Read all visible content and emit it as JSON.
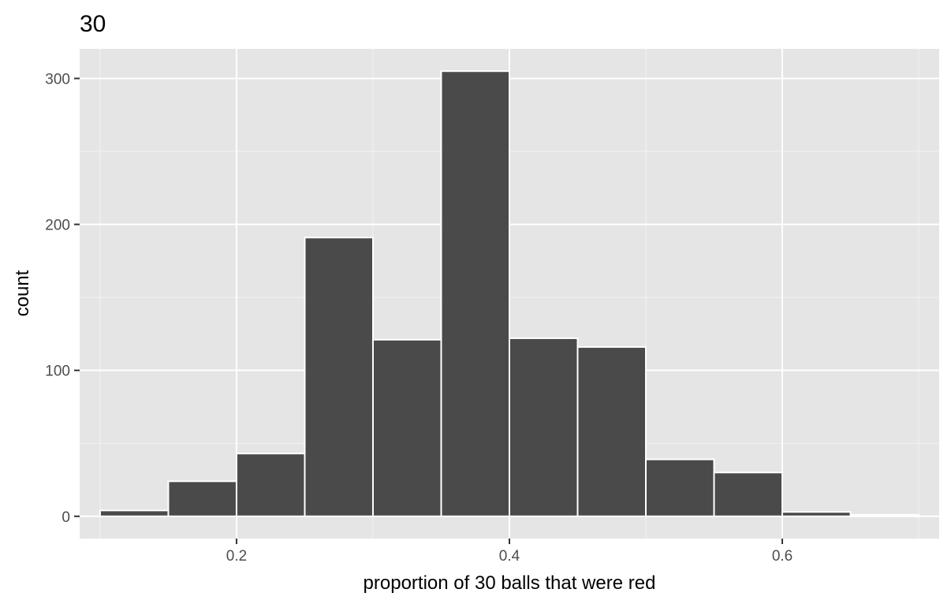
{
  "chart_data": {
    "type": "bar",
    "title": "30",
    "xlabel": "proportion of 30 balls that were red",
    "ylabel": "count",
    "xlim": [
      0.085,
      0.715
    ],
    "ylim": [
      -15.25,
      320.25
    ],
    "x_ticks": [
      0.2,
      0.4,
      0.6
    ],
    "x_tick_labels": [
      "0.2",
      "0.4",
      "0.6"
    ],
    "y_ticks": [
      0,
      100,
      200,
      300
    ],
    "y_tick_labels": [
      "0",
      "100",
      "200",
      "300"
    ],
    "grid": true,
    "bins": [
      {
        "x0": 0.1,
        "x1": 0.15,
        "count": 4
      },
      {
        "x0": 0.15,
        "x1": 0.2,
        "count": 24
      },
      {
        "x0": 0.2,
        "x1": 0.25,
        "count": 43
      },
      {
        "x0": 0.25,
        "x1": 0.3,
        "count": 191
      },
      {
        "x0": 0.3,
        "x1": 0.35,
        "count": 121
      },
      {
        "x0": 0.35,
        "x1": 0.4,
        "count": 305
      },
      {
        "x0": 0.4,
        "x1": 0.45,
        "count": 122
      },
      {
        "x0": 0.45,
        "x1": 0.5,
        "count": 116
      },
      {
        "x0": 0.5,
        "x1": 0.55,
        "count": 39
      },
      {
        "x0": 0.55,
        "x1": 0.6,
        "count": 30
      },
      {
        "x0": 0.6,
        "x1": 0.65,
        "count": 3
      },
      {
        "x0": 0.65,
        "x1": 0.7,
        "count": 1
      }
    ],
    "colors": {
      "panel": "#e5e5e5",
      "grid_major": "#ffffff",
      "grid_minor": "#f2f2f2",
      "bar_fill": "#4a4a4a",
      "bar_outline": "#ffffff",
      "tick_mark": "#333333"
    }
  }
}
